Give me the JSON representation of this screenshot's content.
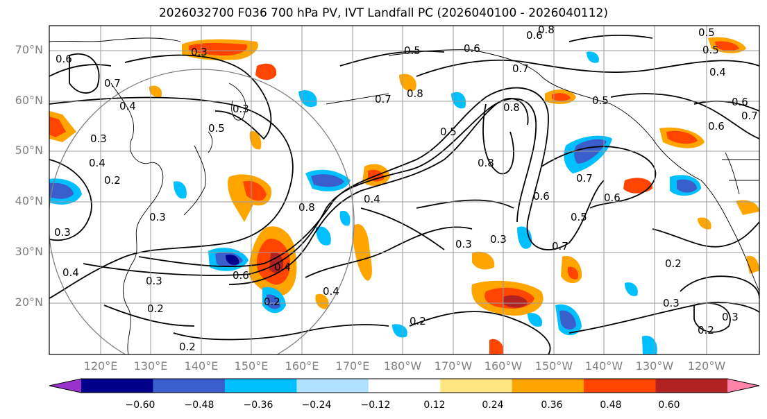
{
  "title": "2026032700 F036 700 hPa PV, IVT Landfall PC (2026040100 - 2026040112)",
  "latitudes": [
    "70°N",
    "60°N",
    "50°N",
    "40°N",
    "30°N",
    "20°N"
  ],
  "longitudes": [
    "120°E",
    "130°E",
    "140°E",
    "150°E",
    "160°E",
    "170°E",
    "180°W",
    "170°W",
    "160°W",
    "150°W",
    "140°W",
    "130°W",
    "120°W"
  ],
  "colorbar": {
    "colors": [
      "#9932cc",
      "#00008b",
      "#3a5fcd",
      "#00bfff",
      "#b0e2ff",
      "#ffffff",
      "#ffe680",
      "#ffa500",
      "#ff4500",
      "#b22222",
      "#ff82ab"
    ],
    "ticks": [
      "−0.60",
      "−0.48",
      "−0.36",
      "−0.24",
      "−0.12",
      "0.12",
      "0.24",
      "0.36",
      "0.48",
      "0.60"
    ]
  },
  "contour_labels": [
    "0.3",
    "0.6",
    "0.7",
    "0.4",
    "0.3",
    "0.4",
    "0.2",
    "0.3",
    "0.3",
    "0.3",
    "0.5",
    "0.8",
    "0.6",
    "0.4",
    "0.3",
    "0.2",
    "0.2",
    "0.4",
    "0.5",
    "0.6",
    "0.8",
    "0.7",
    "0.7",
    "0.8",
    "0.5",
    "0.5",
    "0.6",
    "0.7",
    "0.6",
    "0.5",
    "0.3",
    "0.3",
    "0.7",
    "0.6",
    "0.5",
    "0.2",
    "0.3",
    "0.2",
    "0.3",
    "0.5",
    "0.8",
    "0.4",
    "0.6",
    "0.4",
    "0.7",
    "0.6",
    "0.2",
    "0.8",
    "0.4",
    "0.2"
  ]
}
